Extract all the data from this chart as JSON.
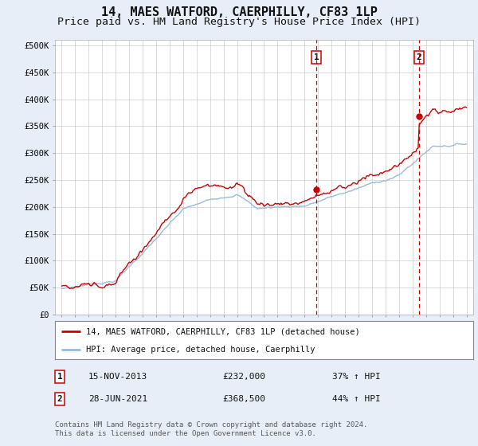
{
  "title": "14, MAES WATFORD, CAERPHILLY, CF83 1LP",
  "subtitle": "Price paid vs. HM Land Registry's House Price Index (HPI)",
  "yticks": [
    0,
    50000,
    100000,
    150000,
    200000,
    250000,
    300000,
    350000,
    400000,
    450000,
    500000
  ],
  "ytick_labels": [
    "£0",
    "£50K",
    "£100K",
    "£150K",
    "£200K",
    "£250K",
    "£300K",
    "£350K",
    "£400K",
    "£450K",
    "£500K"
  ],
  "xlim_year_start": 1994.5,
  "xlim_year_end": 2025.5,
  "ylim_min": 0,
  "ylim_max": 510000,
  "sale1_year": 2013.876,
  "sale1_price": 232000,
  "sale2_year": 2021.486,
  "sale2_price": 368500,
  "sale1_label": "1",
  "sale2_label": "2",
  "red_line_color": "#cc0000",
  "blue_line_color": "#99bbdd",
  "vline_color": "#cc0000",
  "marker_color": "#cc0000",
  "legend_entry1": "14, MAES WATFORD, CAERPHILLY, CF83 1LP (detached house)",
  "legend_entry2": "HPI: Average price, detached house, Caerphilly",
  "table_row1_num": "1",
  "table_row1_date": "15-NOV-2013",
  "table_row1_price": "£232,000",
  "table_row1_hpi": "37% ↑ HPI",
  "table_row2_num": "2",
  "table_row2_date": "28-JUN-2021",
  "table_row2_price": "£368,500",
  "table_row2_hpi": "44% ↑ HPI",
  "footer": "Contains HM Land Registry data © Crown copyright and database right 2024.\nThis data is licensed under the Open Government Licence v3.0.",
  "bg_color": "#e8eef8",
  "plot_bg_color": "#ffffff",
  "title_fontsize": 11,
  "subtitle_fontsize": 9.5
}
